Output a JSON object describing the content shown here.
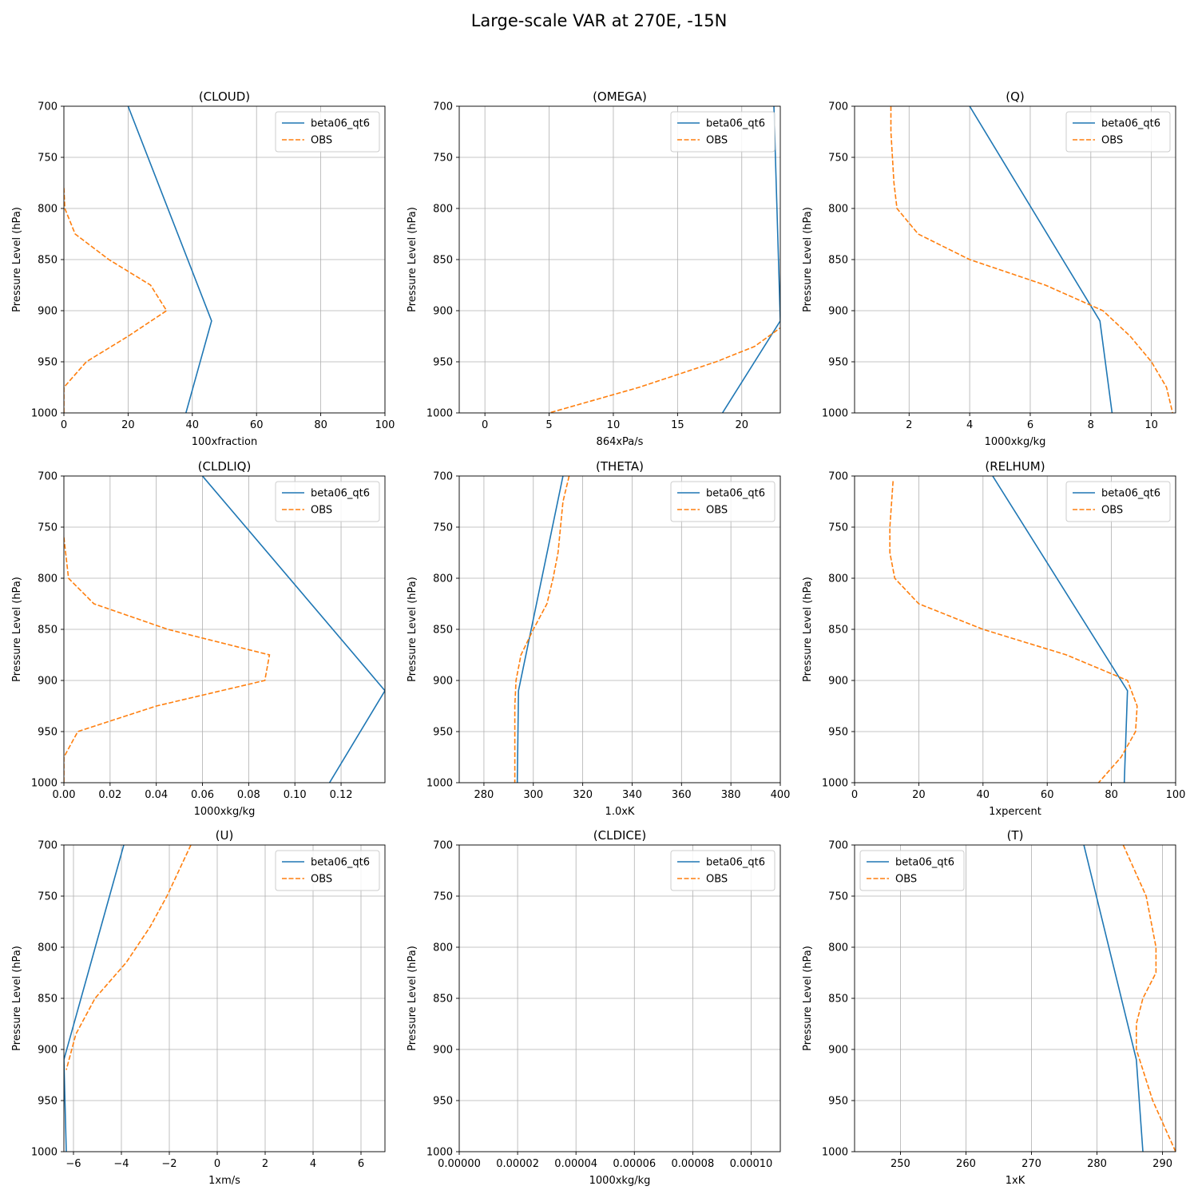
{
  "figure": {
    "title": "Large-scale VAR at 270E, -15N"
  },
  "colors": {
    "model": "#1f77b4",
    "obs": "#ff7f0e",
    "grid": "#b0b0b0"
  },
  "chart_data": [
    {
      "type": "line",
      "title": "(CLOUD)",
      "xlabel": "100xfraction",
      "ylabel": "Pressure Level (hPa)",
      "xlim": [
        0,
        100
      ],
      "ylim": [
        1000,
        700
      ],
      "xticks": [
        0,
        20,
        40,
        60,
        80,
        100
      ],
      "xtick_labels": [
        "0",
        "20",
        "40",
        "60",
        "80",
        "100"
      ],
      "yticks": [
        700,
        750,
        800,
        850,
        900,
        950,
        1000
      ],
      "ytick_labels": [
        "700",
        "750",
        "800",
        "850",
        "900",
        "950",
        "1000"
      ],
      "legend": "top-right",
      "series": [
        {
          "name": "beta06_qt6",
          "style": "solid",
          "x": [
            20,
            46,
            38
          ],
          "y": [
            700,
            910,
            1000
          ]
        },
        {
          "name": "OBS",
          "style": "dashed",
          "x": [
            0,
            0.3,
            3.5,
            14,
            27,
            32,
            20,
            7,
            0,
            0
          ],
          "y": [
            780,
            800,
            825,
            850,
            875,
            900,
            925,
            950,
            975,
            1000
          ]
        }
      ]
    },
    {
      "type": "line",
      "title": "(OMEGA)",
      "xlabel": "864xPa/s",
      "ylabel": "Pressure Level (hPa)",
      "xlim": [
        -2,
        23
      ],
      "ylim": [
        1000,
        700
      ],
      "xticks": [
        0,
        5,
        10,
        15,
        20
      ],
      "xtick_labels": [
        "0",
        "5",
        "10",
        "15",
        "20"
      ],
      "yticks": [
        700,
        750,
        800,
        850,
        900,
        950,
        1000
      ],
      "ytick_labels": [
        "700",
        "750",
        "800",
        "850",
        "900",
        "950",
        "1000"
      ],
      "legend": "top-right",
      "series": [
        {
          "name": "beta06_qt6",
          "style": "solid",
          "x": [
            22.5,
            23,
            18.5
          ],
          "y": [
            700,
            910,
            1000
          ]
        },
        {
          "name": "OBS",
          "style": "dashed",
          "x": [
            23.2,
            21,
            18,
            12,
            5
          ],
          "y": [
            915,
            935,
            950,
            975,
            1000
          ]
        }
      ]
    },
    {
      "type": "line",
      "title": "(Q)",
      "xlabel": "1000xkg/kg",
      "ylabel": "Pressure Level (hPa)",
      "xlim": [
        0.2,
        10.8
      ],
      "ylim": [
        1000,
        700
      ],
      "xticks": [
        2,
        4,
        6,
        8,
        10
      ],
      "xtick_labels": [
        "2",
        "4",
        "6",
        "8",
        "10"
      ],
      "yticks": [
        700,
        750,
        800,
        850,
        900,
        950,
        1000
      ],
      "ytick_labels": [
        "700",
        "750",
        "800",
        "850",
        "900",
        "950",
        "1000"
      ],
      "legend": "top-right",
      "series": [
        {
          "name": "beta06_qt6",
          "style": "solid",
          "x": [
            4,
            8.3,
            8.7
          ],
          "y": [
            700,
            910,
            1000
          ]
        },
        {
          "name": "OBS",
          "style": "dashed",
          "x": [
            1.4,
            1.4,
            1.45,
            1.5,
            1.6,
            2.3,
            4,
            6.5,
            8.4,
            9.3,
            10,
            10.5,
            10.7
          ],
          "y": [
            700,
            725,
            750,
            775,
            800,
            825,
            850,
            875,
            900,
            925,
            950,
            975,
            1000
          ]
        }
      ]
    },
    {
      "type": "line",
      "title": "(CLDLIQ)",
      "xlabel": "1000xkg/kg",
      "ylabel": "Pressure Level (hPa)",
      "xlim": [
        0,
        0.139
      ],
      "ylim": [
        1000,
        700
      ],
      "xticks": [
        0,
        0.02,
        0.04,
        0.06,
        0.08,
        0.1,
        0.12
      ],
      "xtick_labels": [
        "0.00",
        "0.02",
        "0.04",
        "0.06",
        "0.08",
        "0.10",
        "0.12"
      ],
      "yticks": [
        700,
        750,
        800,
        850,
        900,
        950,
        1000
      ],
      "ytick_labels": [
        "700",
        "750",
        "800",
        "850",
        "900",
        "950",
        "1000"
      ],
      "legend": "top-right",
      "series": [
        {
          "name": "beta06_qt6",
          "style": "solid",
          "x": [
            0.06,
            0.139,
            0.115
          ],
          "y": [
            700,
            910,
            1000
          ]
        },
        {
          "name": "OBS",
          "style": "dashed",
          "x": [
            0,
            0.002,
            0.013,
            0.045,
            0.089,
            0.087,
            0.04,
            0.006,
            0,
            0
          ],
          "y": [
            760,
            800,
            825,
            850,
            875,
            900,
            925,
            950,
            975,
            1000
          ]
        }
      ]
    },
    {
      "type": "line",
      "title": "(THETA)",
      "xlabel": "1.0xK",
      "ylabel": "Pressure Level (hPa)",
      "xlim": [
        270,
        400
      ],
      "ylim": [
        1000,
        700
      ],
      "xticks": [
        280,
        300,
        320,
        340,
        360,
        380,
        400
      ],
      "xtick_labels": [
        "280",
        "300",
        "320",
        "340",
        "360",
        "380",
        "400"
      ],
      "yticks": [
        700,
        750,
        800,
        850,
        900,
        950,
        1000
      ],
      "ytick_labels": [
        "700",
        "750",
        "800",
        "850",
        "900",
        "950",
        "1000"
      ],
      "legend": "top-right",
      "series": [
        {
          "name": "beta06_qt6",
          "style": "solid",
          "x": [
            312,
            294,
            293.5
          ],
          "y": [
            700,
            910,
            1000
          ]
        },
        {
          "name": "OBS",
          "style": "dashed",
          "x": [
            314.5,
            312,
            310,
            308,
            305.5,
            300,
            295,
            293,
            292.5,
            292.5,
            292.5
          ],
          "y": [
            700,
            725,
            775,
            800,
            825,
            850,
            875,
            900,
            925,
            950,
            1000
          ]
        }
      ]
    },
    {
      "type": "line",
      "title": "(RELHUM)",
      "xlabel": "1xpercent",
      "ylabel": "Pressure Level (hPa)",
      "xlim": [
        0,
        100
      ],
      "ylim": [
        1000,
        700
      ],
      "xticks": [
        0,
        20,
        40,
        60,
        80,
        100
      ],
      "xtick_labels": [
        "0",
        "20",
        "40",
        "60",
        "80",
        "100"
      ],
      "yticks": [
        700,
        750,
        800,
        850,
        900,
        950,
        1000
      ],
      "ytick_labels": [
        "700",
        "750",
        "800",
        "850",
        "900",
        "950",
        "1000"
      ],
      "legend": "top-right",
      "series": [
        {
          "name": "beta06_qt6",
          "style": "solid",
          "x": [
            43,
            85,
            84
          ],
          "y": [
            700,
            910,
            1000
          ]
        },
        {
          "name": "OBS",
          "style": "dashed",
          "x": [
            12,
            11,
            11,
            12.5,
            20,
            40,
            66,
            85,
            88,
            87.5,
            83,
            76
          ],
          "y": [
            705,
            750,
            775,
            800,
            825,
            850,
            875,
            900,
            925,
            950,
            975,
            1000
          ]
        }
      ]
    },
    {
      "type": "line",
      "title": "(U)",
      "xlabel": "1xm/s",
      "ylabel": "Pressure Level (hPa)",
      "xlim": [
        -6.4,
        7
      ],
      "ylim": [
        1000,
        700
      ],
      "xticks": [
        -6,
        -4,
        -2,
        0,
        2,
        4,
        6
      ],
      "xtick_labels": [
        "−6",
        "−4",
        "−2",
        "0",
        "2",
        "4",
        "6"
      ],
      "yticks": [
        700,
        750,
        800,
        850,
        900,
        950,
        1000
      ],
      "ytick_labels": [
        "700",
        "750",
        "800",
        "850",
        "900",
        "950",
        "1000"
      ],
      "legend": "top-right",
      "series": [
        {
          "name": "beta06_qt6",
          "style": "solid",
          "x": [
            -3.9,
            -6.4,
            -6.3
          ],
          "y": [
            700,
            910,
            1000
          ]
        },
        {
          "name": "OBS",
          "style": "dashed",
          "x": [
            -1.1,
            -2.1,
            -2.8,
            -3.8,
            -5.1,
            -5.9,
            -6.3
          ],
          "y": [
            700,
            750,
            780,
            815,
            850,
            885,
            920
          ]
        }
      ]
    },
    {
      "type": "line",
      "title": "(CLDICE)",
      "xlabel": "1000xkg/kg",
      "ylabel": "Pressure Level (hPa)",
      "xlim": [
        0,
        0.00011
      ],
      "ylim": [
        1000,
        700
      ],
      "xticks": [
        0,
        2e-05,
        4e-05,
        6e-05,
        8e-05,
        0.0001
      ],
      "xtick_labels": [
        "0.00000",
        "0.00002",
        "0.00004",
        "0.00006",
        "0.00008",
        "0.00010"
      ],
      "yticks": [
        700,
        750,
        800,
        850,
        900,
        950,
        1000
      ],
      "ytick_labels": [
        "700",
        "750",
        "800",
        "850",
        "900",
        "950",
        "1000"
      ],
      "legend": "top-right",
      "series": [
        {
          "name": "beta06_qt6",
          "style": "solid",
          "x": [],
          "y": []
        },
        {
          "name": "OBS",
          "style": "dashed",
          "x": [],
          "y": []
        }
      ]
    },
    {
      "type": "line",
      "title": "(T)",
      "xlabel": "1xK",
      "ylabel": "Pressure Level (hPa)",
      "xlim": [
        243,
        292
      ],
      "ylim": [
        1000,
        700
      ],
      "xticks": [
        250,
        260,
        270,
        280,
        290
      ],
      "xtick_labels": [
        "250",
        "260",
        "270",
        "280",
        "290"
      ],
      "yticks": [
        700,
        750,
        800,
        850,
        900,
        950,
        1000
      ],
      "ytick_labels": [
        "700",
        "750",
        "800",
        "850",
        "900",
        "950",
        "1000"
      ],
      "legend": "top-left",
      "series": [
        {
          "name": "beta06_qt6",
          "style": "solid",
          "x": [
            278,
            286,
            287
          ],
          "y": [
            700,
            910,
            1000
          ]
        },
        {
          "name": "OBS",
          "style": "dashed",
          "x": [
            284,
            287.5,
            289,
            289,
            287,
            286,
            286,
            288.5,
            292
          ],
          "y": [
            700,
            750,
            800,
            825,
            850,
            875,
            900,
            950,
            1000
          ]
        }
      ]
    }
  ]
}
